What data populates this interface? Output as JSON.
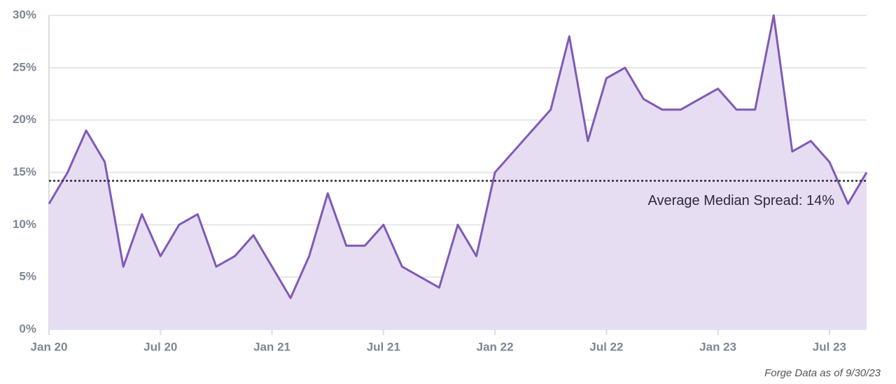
{
  "chart_data": {
    "type": "area",
    "categories": [
      "Jan 20",
      null,
      null,
      null,
      null,
      null,
      "Jul 20",
      null,
      null,
      null,
      null,
      null,
      "Jan 21",
      null,
      null,
      null,
      null,
      null,
      "Jul 21",
      null,
      null,
      null,
      null,
      null,
      "Jan 22",
      null,
      null,
      null,
      null,
      null,
      "Jul 22",
      null,
      null,
      null,
      null,
      null,
      "Jan 23",
      null,
      null,
      null,
      null,
      null,
      "Jul 23",
      null,
      null
    ],
    "series": [
      {
        "name": "Median Spread",
        "color": "#7f5ab6",
        "fill": "#e7ddf3",
        "values": [
          12,
          15,
          19,
          16,
          6,
          11,
          7,
          10,
          11,
          6,
          7,
          9,
          6,
          3,
          7,
          13,
          8,
          8,
          10,
          6,
          5,
          4,
          10,
          7,
          15,
          17,
          19,
          21,
          28,
          18,
          24,
          25,
          22,
          21,
          21,
          22,
          23,
          21,
          21,
          30,
          17,
          18,
          16,
          12,
          15
        ]
      }
    ],
    "average": {
      "value": 14.2,
      "label": "Average Median Spread: 14%",
      "color": "#2e2a3a"
    },
    "ylim": [
      0,
      30
    ],
    "yticks": [
      {
        "value": 0,
        "label": "0%"
      },
      {
        "value": 5,
        "label": "5%"
      },
      {
        "value": 10,
        "label": "10%"
      },
      {
        "value": 15,
        "label": "15%"
      },
      {
        "value": 20,
        "label": "20%"
      },
      {
        "value": 25,
        "label": "25%"
      },
      {
        "value": 30,
        "label": "30%"
      }
    ],
    "grid": true,
    "source": "Forge Data as of 9/30/23"
  }
}
